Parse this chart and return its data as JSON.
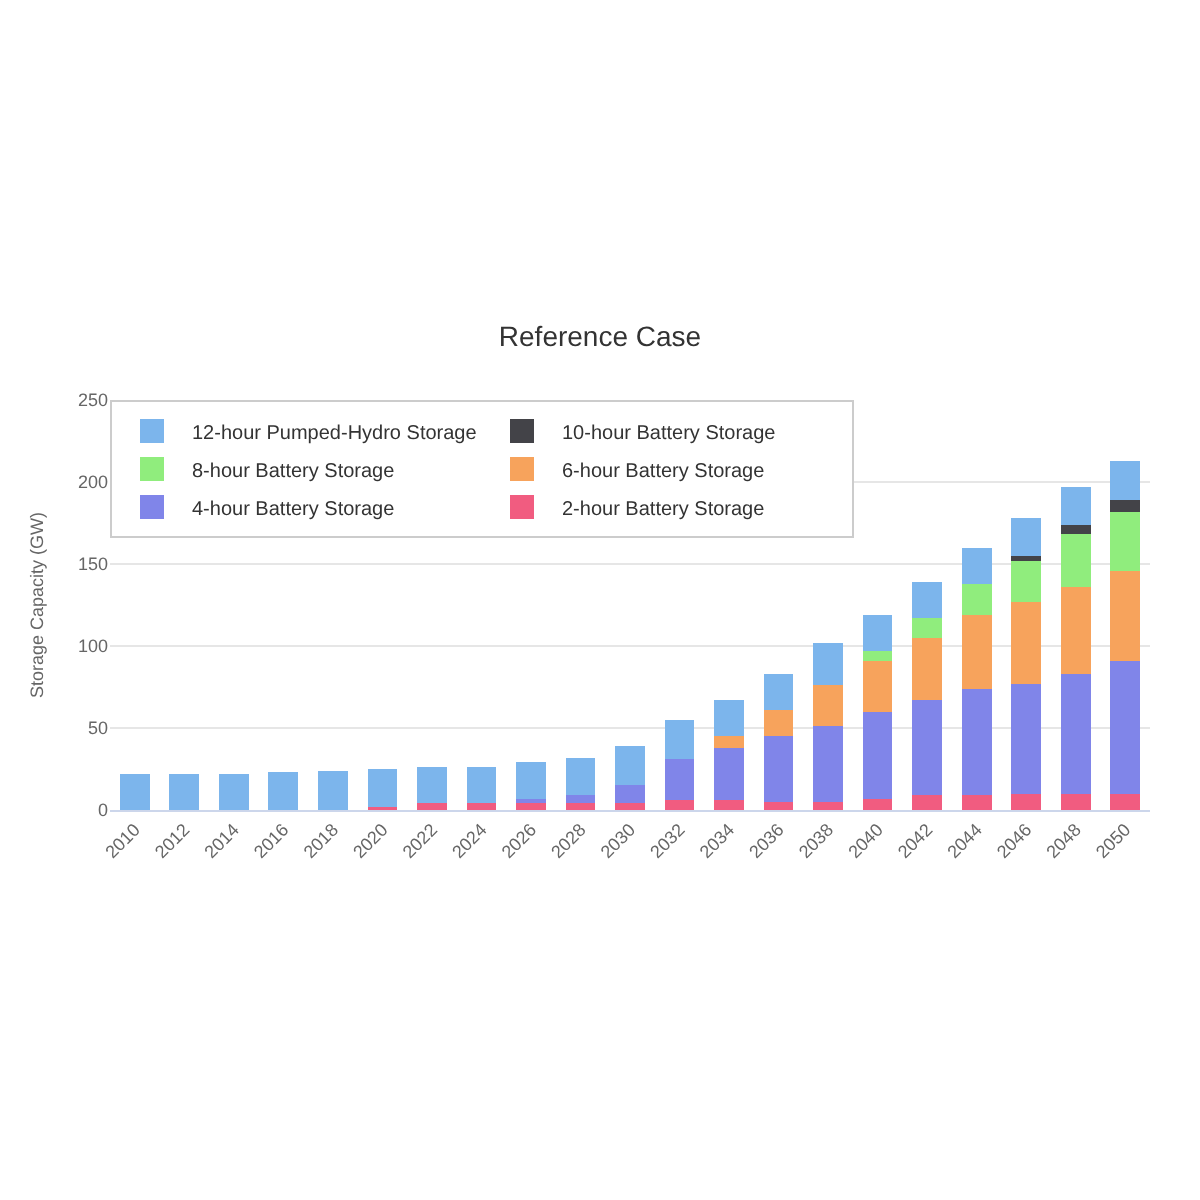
{
  "chart_data": {
    "type": "bar",
    "title": "Reference Case",
    "ylabel": "Storage Capacity (GW)",
    "categories": [
      "2010",
      "2012",
      "2014",
      "2016",
      "2018",
      "2020",
      "2022",
      "2024",
      "2026",
      "2028",
      "2030",
      "2032",
      "2034",
      "2036",
      "2038",
      "2040",
      "2042",
      "2044",
      "2046",
      "2048",
      "2050"
    ],
    "stacked": true,
    "ylim": [
      0,
      250
    ],
    "yticks": [
      0,
      50,
      100,
      150,
      200,
      250
    ],
    "grid": "y",
    "legend": "top",
    "series": [
      {
        "name": "2-hour Battery Storage",
        "color": "#f15c80",
        "values": [
          0,
          0,
          0,
          0,
          0,
          2,
          4,
          4,
          4,
          4,
          4,
          6,
          6,
          5,
          5,
          7,
          9,
          9,
          10,
          10,
          10
        ]
      },
      {
        "name": "4-hour Battery Storage",
        "color": "#8085e9",
        "values": [
          0,
          0,
          0,
          0,
          0,
          0,
          null,
          null,
          3,
          5,
          11,
          25,
          32,
          40,
          46,
          53,
          58,
          65,
          67,
          73,
          81
        ]
      },
      {
        "name": "6-hour Battery Storage",
        "color": "#f7a35c",
        "values": [
          0,
          0,
          0,
          0,
          0,
          0,
          0,
          0,
          0,
          0,
          0,
          0,
          7,
          16,
          25,
          31,
          38,
          45,
          50,
          53,
          55
        ]
      },
      {
        "name": "8-hour Battery Storage",
        "color": "#90ed7d",
        "values": [
          0,
          0,
          0,
          0,
          0,
          0,
          0,
          0,
          0,
          0,
          0,
          0,
          0,
          0,
          0,
          6,
          12,
          19,
          25,
          32,
          36
        ]
      },
      {
        "name": "10-hour Battery Storage",
        "color": "#434348",
        "values": [
          0,
          0,
          0,
          0,
          0,
          0,
          0,
          0,
          0,
          0,
          0,
          0,
          0,
          0,
          0,
          0,
          0,
          0,
          3,
          6,
          7
        ]
      },
      {
        "name": "12-hour Pumped-Hydro Storage",
        "color": "#7cb5ec",
        "values": [
          22,
          22,
          22,
          23,
          24,
          23,
          22,
          22,
          22,
          23,
          24,
          24,
          22,
          22,
          26,
          22,
          22,
          22,
          23,
          23,
          24
        ]
      }
    ]
  }
}
